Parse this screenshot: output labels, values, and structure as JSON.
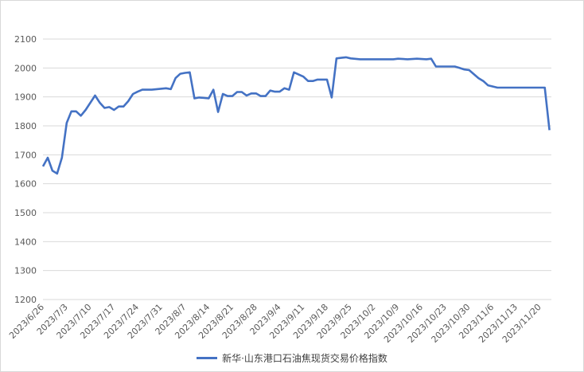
{
  "chart_data": {
    "type": "line",
    "title": "",
    "xlabel": "",
    "ylabel": "",
    "ylim": [
      1200,
      2100
    ],
    "y_ticks": [
      1200,
      1300,
      1400,
      1500,
      1600,
      1700,
      1800,
      1900,
      2000,
      2100
    ],
    "x_ticks": [
      "2023/6/26",
      "2023/7/3",
      "2023/7/10",
      "2023/7/17",
      "2023/7/24",
      "2023/7/31",
      "2023/8/7",
      "2023/8/14",
      "2023/8/21",
      "2023/8/28",
      "2023/9/4",
      "2023/9/11",
      "2023/9/18",
      "2023/9/25",
      "2023/10/2",
      "2023/10/9",
      "2023/10/16",
      "2023/10/23",
      "2023/10/30",
      "2023/11/6",
      "2023/11/13",
      "2023/11/20"
    ],
    "grid": true,
    "legend_position": "bottom",
    "series": [
      {
        "name": "新华·山东港口石油焦现货交易价格指数",
        "color": "#4472c4",
        "x": [
          "2023/6/26",
          "2023/6/27",
          "2023/6/28",
          "2023/6/29",
          "2023/6/30",
          "2023/7/3",
          "2023/7/4",
          "2023/7/5",
          "2023/7/6",
          "2023/7/7",
          "2023/7/11",
          "2023/7/12",
          "2023/7/13",
          "2023/7/14",
          "2023/7/17",
          "2023/7/18",
          "2023/7/19",
          "2023/7/20",
          "2023/7/21",
          "2023/7/24",
          "2023/7/25",
          "2023/7/27",
          "2023/8/1",
          "2023/8/2",
          "2023/8/3",
          "2023/8/4",
          "2023/8/7",
          "2023/8/8",
          "2023/8/9",
          "2023/8/10",
          "2023/8/14",
          "2023/8/15",
          "2023/8/16",
          "2023/8/17",
          "2023/8/18",
          "2023/8/21",
          "2023/8/22",
          "2023/8/23",
          "2023/8/24",
          "2023/8/25",
          "2023/8/28",
          "2023/8/29",
          "2023/8/30",
          "2023/8/31",
          "2023/9/1",
          "2023/9/4",
          "2023/9/5",
          "2023/9/6",
          "2023/9/7",
          "2023/9/11",
          "2023/9/12",
          "2023/9/13",
          "2023/9/14",
          "2023/9/18",
          "2023/9/19",
          "2023/9/20",
          "2023/9/21",
          "2023/9/22",
          "2023/9/25",
          "2023/9/27",
          "2023/10/6",
          "2023/10/9",
          "2023/10/11",
          "2023/10/13",
          "2023/10/17",
          "2023/10/18",
          "2023/10/19",
          "2023/10/24",
          "2023/10/25",
          "2023/10/26",
          "2023/10/27",
          "2023/10/30",
          "2023/11/1",
          "2023/11/2",
          "2023/11/3",
          "2023/11/7",
          "2023/11/21",
          "2023/11/22"
        ],
        "values": [
          1660,
          1690,
          1645,
          1635,
          1690,
          1810,
          1850,
          1850,
          1835,
          1855,
          1905,
          1880,
          1862,
          1865,
          1855,
          1867,
          1867,
          1885,
          1910,
          1918,
          1925,
          1925,
          1930,
          1927,
          1965,
          1980,
          1983,
          1985,
          1895,
          1898,
          1895,
          1925,
          1848,
          1910,
          1903,
          1903,
          1917,
          1917,
          1905,
          1912,
          1912,
          1903,
          1903,
          1922,
          1918,
          1918,
          1930,
          1925,
          1985,
          1970,
          1955,
          1955,
          1960,
          1960,
          1898,
          2033,
          2035,
          2037,
          2033,
          2030,
          2030,
          2032,
          2030,
          2032,
          2030,
          2032,
          2005,
          2005,
          2005,
          2000,
          1995,
          1993,
          1965,
          1955,
          1940,
          1932,
          1932,
          1785
        ]
      }
    ]
  }
}
